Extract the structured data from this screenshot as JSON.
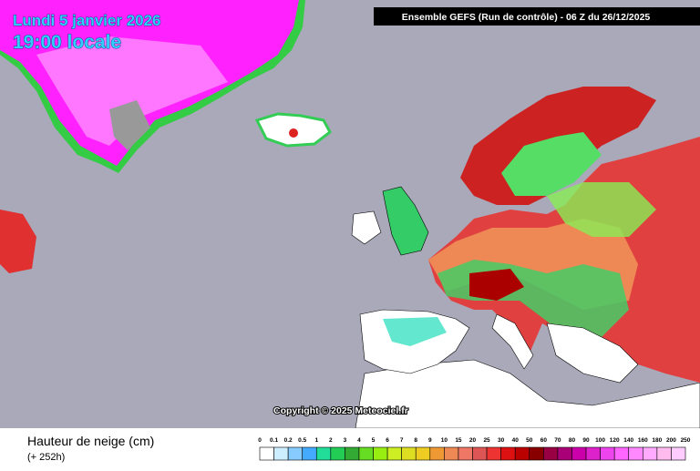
{
  "header": {
    "title": "Lundi 5 janvier 2026",
    "time": "19:00 locale",
    "run": "Ensemble GEFS  (Run de contrôle)  -  06 Z du 26/12/2025"
  },
  "map": {
    "copyright": "Copyright © 2025 Meteociel.fr"
  },
  "legend": {
    "title": "Hauteur de neige (cm)",
    "lead": "(+ 252h)",
    "labels": [
      "0",
      "0.1",
      "0.2",
      "0.5",
      "1",
      "2",
      "3",
      "4",
      "5",
      "6",
      "7",
      "8",
      "9",
      "10",
      "15",
      "20",
      "25",
      "30",
      "40",
      "50",
      "60",
      "70",
      "80",
      "90",
      "100",
      "120",
      "140",
      "160",
      "180",
      "200",
      "250"
    ],
    "colors": [
      "#ffffff",
      "#cceeff",
      "#88ccff",
      "#44aaff",
      "#22dd99",
      "#22cc55",
      "#33aa33",
      "#66dd22",
      "#99ee11",
      "#ccee22",
      "#dddd22",
      "#eecc22",
      "#ee9933",
      "#ee8855",
      "#ee7766",
      "#dd5555",
      "#ee3333",
      "#dd1111",
      "#bb0000",
      "#880000",
      "#990044",
      "#aa0077",
      "#cc00aa",
      "#dd22cc",
      "#ee44ee",
      "#ff66ff",
      "#ff88ff",
      "#ffaaff",
      "#ffbbee",
      "#ffccff"
    ]
  }
}
